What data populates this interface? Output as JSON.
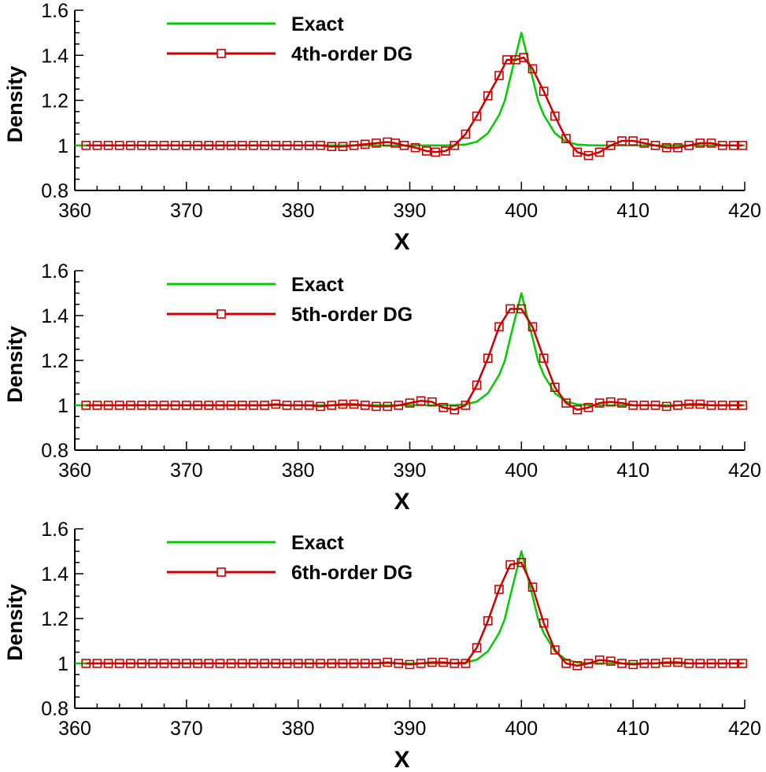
{
  "colors": {
    "exact": "#00cc00",
    "dg": "#cc0000",
    "axis": "#000000"
  },
  "chart_data": [
    {
      "type": "line",
      "xlabel": "X",
      "ylabel": "Density",
      "xlim": [
        360,
        420
      ],
      "ylim": [
        0.8,
        1.6
      ],
      "xticks": [
        360,
        370,
        380,
        390,
        400,
        410,
        420
      ],
      "yticks": [
        0.8,
        1,
        1.2,
        1.4,
        1.6
      ],
      "ytick_labels": [
        "0.8",
        "1",
        "1.2",
        "1.4",
        "1.6"
      ],
      "legend": [
        "Exact",
        "4th-order DG"
      ],
      "series": [
        {
          "name": "Exact",
          "x": [
            360,
            390,
            393,
            394,
            395,
            396,
            397,
            398,
            398.5,
            399,
            399.5,
            400,
            400.5,
            401,
            401.5,
            402,
            403,
            404,
            405,
            406,
            407,
            420
          ],
          "y": [
            1.0,
            1.0,
            1.0,
            1.001,
            1.004,
            1.016,
            1.054,
            1.135,
            1.197,
            1.3,
            1.4,
            1.5,
            1.4,
            1.3,
            1.197,
            1.135,
            1.054,
            1.016,
            1.004,
            1.001,
            1.0,
            1.0
          ]
        },
        {
          "name": "4th-order DG",
          "x": [
            361,
            362,
            363,
            364,
            365,
            366,
            367,
            368,
            369,
            370,
            371,
            372,
            373,
            374,
            375,
            376,
            377,
            378,
            379,
            380,
            381,
            382,
            383,
            384,
            385,
            386,
            387,
            388,
            388.7,
            389.5,
            390.5,
            391.5,
            392.3,
            393.2,
            394,
            395,
            396,
            397,
            398,
            398.7,
            399.5,
            400.2,
            401,
            402,
            403,
            404,
            405,
            406,
            407,
            408,
            409,
            410,
            411,
            412,
            413,
            414,
            415,
            416,
            417,
            418,
            419,
            419.8
          ],
          "y": [
            1.0,
            1.0,
            1.0,
            1.0,
            1.0,
            1.0,
            1.0,
            1.0,
            1.0,
            1.0,
            1.0,
            1.0,
            1.0,
            1.0,
            1.0,
            1.0,
            1.0,
            1.0,
            1.0,
            1.0,
            1.0,
            1.0,
            0.995,
            0.995,
            1.0,
            1.005,
            1.01,
            1.015,
            1.01,
            1.0,
            0.99,
            0.975,
            0.97,
            0.975,
            1.0,
            1.05,
            1.13,
            1.22,
            1.31,
            1.38,
            1.38,
            1.39,
            1.34,
            1.24,
            1.13,
            1.03,
            0.97,
            0.955,
            0.97,
            1.0,
            1.02,
            1.02,
            1.01,
            1.0,
            0.99,
            0.99,
            1.0,
            1.01,
            1.01,
            1.0,
            1.0,
            1.0
          ]
        }
      ]
    },
    {
      "type": "line",
      "xlabel": "X",
      "ylabel": "Density",
      "xlim": [
        360,
        420
      ],
      "ylim": [
        0.8,
        1.6
      ],
      "xticks": [
        360,
        370,
        380,
        390,
        400,
        410,
        420
      ],
      "yticks": [
        0.8,
        1,
        1.2,
        1.4,
        1.6
      ],
      "ytick_labels": [
        "0.8",
        "1",
        "1.2",
        "1.4",
        "1.6"
      ],
      "legend": [
        "Exact",
        "5th-order DG"
      ],
      "series": [
        {
          "name": "Exact",
          "x": [
            360,
            390,
            393,
            394,
            395,
            396,
            397,
            398,
            398.5,
            399,
            399.5,
            400,
            400.5,
            401,
            401.5,
            402,
            403,
            404,
            405,
            406,
            407,
            420
          ],
          "y": [
            1.0,
            1.0,
            1.0,
            1.001,
            1.004,
            1.016,
            1.054,
            1.135,
            1.197,
            1.3,
            1.4,
            1.5,
            1.4,
            1.3,
            1.197,
            1.135,
            1.054,
            1.016,
            1.004,
            1.001,
            1.0,
            1.0
          ]
        },
        {
          "name": "5th-order DG",
          "x": [
            361,
            362,
            363,
            364,
            365,
            366,
            367,
            368,
            369,
            370,
            371,
            372,
            373,
            374,
            375,
            376,
            377,
            378,
            379,
            380,
            381,
            382,
            383,
            384,
            385,
            386,
            387,
            388,
            389,
            390,
            391,
            392,
            393,
            394,
            395,
            396,
            397,
            398,
            399,
            400,
            401,
            402,
            403,
            404,
            405,
            406,
            407,
            408,
            409,
            410,
            411,
            412,
            413,
            414,
            415,
            416,
            417,
            418,
            419,
            419.8
          ],
          "y": [
            1.0,
            1.0,
            1.0,
            1.0,
            1.0,
            1.0,
            1.0,
            1.0,
            1.0,
            1.0,
            1.0,
            1.0,
            1.0,
            1.0,
            1.0,
            1.0,
            1.0,
            1.005,
            1.0,
            1.0,
            1.0,
            0.995,
            1.0,
            1.005,
            1.005,
            1.0,
            0.995,
            0.995,
            1.0,
            1.01,
            1.02,
            1.015,
            0.99,
            0.98,
            1.0,
            1.09,
            1.21,
            1.35,
            1.43,
            1.43,
            1.35,
            1.21,
            1.08,
            1.01,
            0.98,
            0.99,
            1.01,
            1.015,
            1.01,
            1.0,
            1.0,
            1.0,
            0.995,
            1.0,
            1.005,
            1.005,
            1.0,
            1.0,
            1.0,
            1.0
          ]
        }
      ]
    },
    {
      "type": "line",
      "xlabel": "X",
      "ylabel": "Density",
      "xlim": [
        360,
        420
      ],
      "ylim": [
        0.8,
        1.6
      ],
      "xticks": [
        360,
        370,
        380,
        390,
        400,
        410,
        420
      ],
      "yticks": [
        0.8,
        1,
        1.2,
        1.4,
        1.6
      ],
      "ytick_labels": [
        "0.8",
        "1",
        "1.2",
        "1.4",
        "1.6"
      ],
      "legend": [
        "Exact",
        "6th-order DG"
      ],
      "series": [
        {
          "name": "Exact",
          "x": [
            360,
            390,
            393,
            394,
            395,
            396,
            397,
            398,
            398.5,
            399,
            399.5,
            400,
            400.5,
            401,
            401.5,
            402,
            403,
            404,
            405,
            406,
            407,
            420
          ],
          "y": [
            1.0,
            1.0,
            1.0,
            1.001,
            1.004,
            1.016,
            1.054,
            1.135,
            1.197,
            1.3,
            1.4,
            1.5,
            1.4,
            1.3,
            1.197,
            1.135,
            1.054,
            1.016,
            1.004,
            1.001,
            1.0,
            1.0
          ]
        },
        {
          "name": "6th-order DG",
          "x": [
            361,
            362,
            363,
            364,
            365,
            366,
            367,
            368,
            369,
            370,
            371,
            372,
            373,
            374,
            375,
            376,
            377,
            378,
            379,
            380,
            381,
            382,
            383,
            384,
            385,
            386,
            387,
            388,
            389,
            390,
            391,
            392,
            393,
            394,
            395,
            396,
            397,
            398,
            399,
            400,
            401,
            402,
            403,
            404,
            405,
            406,
            407,
            408,
            409,
            410,
            411,
            412,
            413,
            414,
            415,
            416,
            417,
            418,
            419,
            419.8
          ],
          "y": [
            1.0,
            1.0,
            1.0,
            1.0,
            1.0,
            1.0,
            1.0,
            1.0,
            1.0,
            1.0,
            1.0,
            1.0,
            1.0,
            1.0,
            1.0,
            1.0,
            1.0,
            1.0,
            1.0,
            1.0,
            1.0,
            1.0,
            1.0,
            1.0,
            1.0,
            1.0,
            1.0,
            1.005,
            1.0,
            0.995,
            1.0,
            1.005,
            1.005,
            1.0,
            1.0,
            1.07,
            1.19,
            1.33,
            1.44,
            1.45,
            1.34,
            1.18,
            1.06,
            1.0,
            0.99,
            1.0,
            1.015,
            1.01,
            1.0,
            0.995,
            1.0,
            1.0,
            1.005,
            1.005,
            1.0,
            1.0,
            1.0,
            1.0,
            1.0,
            1.0
          ]
        }
      ]
    }
  ]
}
